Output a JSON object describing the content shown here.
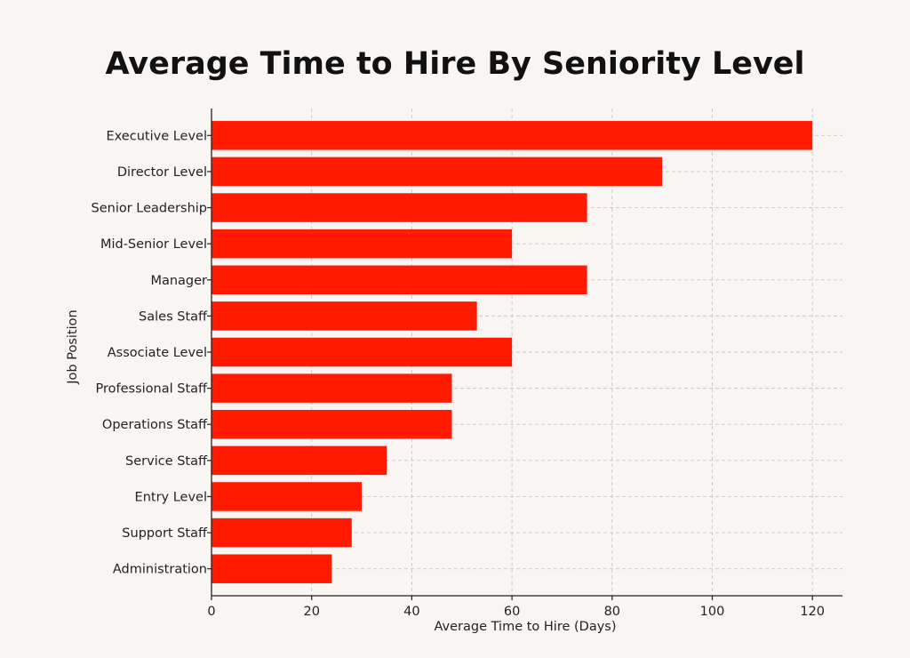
{
  "chart_data": {
    "type": "bar",
    "orientation": "horizontal",
    "title": "Average Time to Hire By Seniority Level",
    "xlabel": "Average Time to Hire (Days)",
    "ylabel": "Job Position",
    "categories": [
      "Executive Level",
      "Director Level",
      "Senior Leadership",
      "Mid-Senior Level",
      "Manager",
      "Sales Staff",
      "Associate Level",
      "Professional Staff",
      "Operations Staff",
      "Service Staff",
      "Entry Level",
      "Support Staff",
      "Administration"
    ],
    "values": [
      120,
      90,
      75,
      60,
      75,
      53,
      60,
      48,
      48,
      35,
      30,
      28,
      24
    ],
    "xlim": [
      0,
      126
    ],
    "xticks": [
      0,
      20,
      40,
      60,
      80,
      100,
      120
    ],
    "grid": true,
    "bar_color": "#ff1a00"
  }
}
